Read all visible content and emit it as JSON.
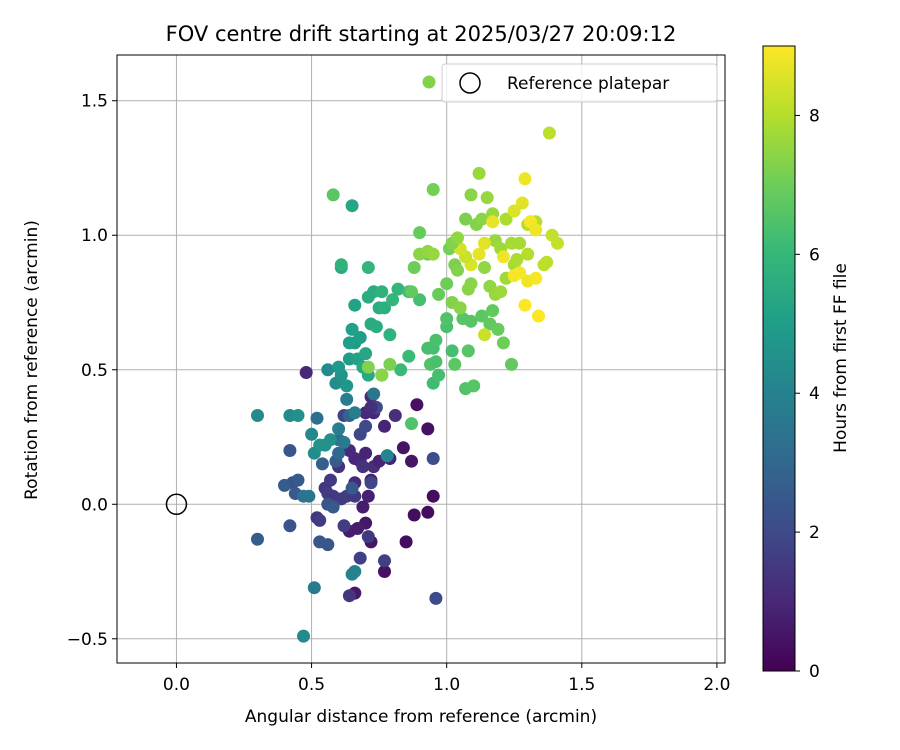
{
  "chart_data": {
    "type": "scatter",
    "title": "FOV centre drift starting at 2025/03/27 20:09:12",
    "xlabel": "Angular distance from reference (arcmin)",
    "ylabel": "Rotation from reference (arcmin)",
    "xlim": [
      -0.22,
      2.03
    ],
    "ylim": [
      -0.59,
      1.67
    ],
    "xticks": [
      0.0,
      0.5,
      1.0,
      1.5,
      2.0
    ],
    "xtick_labels": [
      "0.0",
      "0.5",
      "1.0",
      "1.5",
      "2.0"
    ],
    "yticks": [
      -0.5,
      0.0,
      0.5,
      1.0,
      1.5
    ],
    "ytick_labels": [
      "−0.5",
      "0.0",
      "0.5",
      "1.0",
      "1.5"
    ],
    "grid": true,
    "legend_position": "top-right",
    "colormap": "viridis",
    "colorbar": {
      "label": "Hours from first FF file",
      "range": [
        0,
        9
      ],
      "ticks": [
        0,
        2,
        4,
        6,
        8
      ],
      "tick_labels": [
        "0",
        "2",
        "4",
        "6",
        "8"
      ]
    },
    "reference": {
      "name": "Reference platepar",
      "x": 0.0,
      "y": 0.0
    },
    "points": [
      [
        0.48,
        0.49,
        1.0
      ],
      [
        0.7,
        0.34,
        1.0
      ],
      [
        0.72,
        0.4,
        1.1
      ],
      [
        0.73,
        0.34,
        1.0
      ],
      [
        0.77,
        0.29,
        0.9
      ],
      [
        0.78,
        0.18,
        0.8
      ],
      [
        0.84,
        0.21,
        0.5
      ],
      [
        0.87,
        0.16,
        0.5
      ],
      [
        0.89,
        0.37,
        0.4
      ],
      [
        0.93,
        0.28,
        0.4
      ],
      [
        0.95,
        0.03,
        0.3
      ],
      [
        0.88,
        -0.04,
        0.3
      ],
      [
        0.93,
        -0.03,
        0.3
      ],
      [
        0.85,
        -0.14,
        0.3
      ],
      [
        0.77,
        -0.25,
        0.4
      ],
      [
        0.72,
        -0.14,
        0.5
      ],
      [
        0.7,
        -0.07,
        0.6
      ],
      [
        0.67,
        -0.09,
        0.7
      ],
      [
        0.64,
        -0.1,
        0.7
      ],
      [
        0.66,
        -0.33,
        0.6
      ],
      [
        0.69,
        -0.01,
        0.7
      ],
      [
        0.72,
        0.09,
        0.8
      ],
      [
        0.71,
        0.03,
        0.8
      ],
      [
        0.66,
        0.17,
        1.0
      ],
      [
        0.64,
        0.2,
        1.1
      ],
      [
        0.66,
        0.08,
        1.0
      ],
      [
        0.68,
        0.16,
        1.0
      ],
      [
        0.7,
        0.19,
        0.9
      ],
      [
        0.73,
        0.14,
        1.2
      ],
      [
        0.79,
        0.17,
        0.9
      ],
      [
        0.75,
        0.16,
        0.9
      ],
      [
        0.81,
        0.33,
        1.2
      ],
      [
        0.69,
        0.14,
        1.3
      ],
      [
        0.6,
        0.14,
        1.3
      ],
      [
        0.55,
        0.06,
        1.4
      ],
      [
        0.57,
        0.09,
        1.5
      ],
      [
        0.52,
        -0.05,
        1.4
      ],
      [
        0.53,
        -0.06,
        1.6
      ],
      [
        0.56,
        0.04,
        1.6
      ],
      [
        0.58,
        0.03,
        1.5
      ],
      [
        0.61,
        0.02,
        1.6
      ],
      [
        0.63,
        0.03,
        1.6
      ],
      [
        0.66,
        0.03,
        1.5
      ],
      [
        0.62,
        -0.08,
        1.6
      ],
      [
        0.64,
        -0.34,
        1.4
      ],
      [
        0.68,
        -0.2,
        1.7
      ],
      [
        0.71,
        -0.12,
        1.5
      ],
      [
        0.77,
        -0.21,
        1.7
      ],
      [
        0.72,
        0.08,
        1.9
      ],
      [
        0.68,
        0.26,
        1.9
      ],
      [
        0.62,
        0.33,
        1.8
      ],
      [
        0.7,
        0.29,
        2.0
      ],
      [
        0.74,
        0.36,
        2.0
      ],
      [
        0.72,
        0.36,
        1.2
      ],
      [
        0.95,
        0.17,
        2.1
      ],
      [
        0.96,
        -0.35,
        2.0
      ],
      [
        0.42,
        0.2,
        2.4
      ],
      [
        0.43,
        0.08,
        2.2
      ],
      [
        0.42,
        -0.08,
        2.3
      ],
      [
        0.44,
        0.04,
        2.5
      ],
      [
        0.4,
        0.07,
        2.6
      ],
      [
        0.45,
        0.09,
        2.5
      ],
      [
        0.3,
        -0.13,
        2.6
      ],
      [
        0.53,
        -0.14,
        2.4
      ],
      [
        0.56,
        -0.15,
        2.4
      ],
      [
        0.54,
        0.15,
        2.7
      ],
      [
        0.59,
        0.16,
        2.6
      ],
      [
        0.65,
        0.06,
        2.5
      ],
      [
        0.56,
        0.0,
        2.4
      ],
      [
        0.58,
        -0.01,
        2.5
      ],
      [
        0.6,
        0.19,
        3.0
      ],
      [
        0.6,
        0.24,
        3.0
      ],
      [
        0.64,
        0.33,
        2.9
      ],
      [
        0.52,
        0.32,
        3.3
      ],
      [
        0.47,
        0.03,
        3.4
      ],
      [
        0.49,
        0.03,
        3.5
      ],
      [
        0.51,
        -0.31,
        3.7
      ],
      [
        0.6,
        0.28,
        3.8
      ],
      [
        0.65,
        -0.26,
        4.0
      ],
      [
        0.66,
        -0.25,
        4.0
      ],
      [
        0.62,
        0.23,
        3.7
      ],
      [
        0.66,
        0.34,
        3.8
      ],
      [
        0.63,
        0.39,
        3.9
      ],
      [
        0.73,
        0.41,
        3.5
      ],
      [
        0.78,
        0.18,
        4.1
      ],
      [
        0.47,
        -0.49,
        4.3
      ],
      [
        0.3,
        0.33,
        4.3
      ],
      [
        0.42,
        0.33,
        4.3
      ],
      [
        0.45,
        0.33,
        4.5
      ],
      [
        0.5,
        0.26,
        4.2
      ],
      [
        0.51,
        0.19,
        4.4
      ],
      [
        0.53,
        0.22,
        4.6
      ],
      [
        0.55,
        0.22,
        4.6
      ],
      [
        0.57,
        0.24,
        4.5
      ],
      [
        0.56,
        0.5,
        4.3
      ],
      [
        0.59,
        0.45,
        4.4
      ],
      [
        0.61,
        0.48,
        4.6
      ],
      [
        0.63,
        0.44,
        4.7
      ],
      [
        0.6,
        0.51,
        4.8
      ],
      [
        0.64,
        0.54,
        4.9
      ],
      [
        0.66,
        0.6,
        4.9
      ],
      [
        0.68,
        0.62,
        5.0
      ],
      [
        0.64,
        0.6,
        5.0
      ],
      [
        0.65,
        0.65,
        5.1
      ],
      [
        0.66,
        0.74,
        5.2
      ],
      [
        0.67,
        0.54,
        5.2
      ],
      [
        0.7,
        0.56,
        5.3
      ],
      [
        0.71,
        0.48,
        5.4
      ],
      [
        0.69,
        0.51,
        5.4
      ],
      [
        0.72,
        0.67,
        5.5
      ],
      [
        0.74,
        0.66,
        5.6
      ],
      [
        0.75,
        0.73,
        5.5
      ],
      [
        0.71,
        0.77,
        5.6
      ],
      [
        0.73,
        0.79,
        5.6
      ],
      [
        0.77,
        0.73,
        5.7
      ],
      [
        0.76,
        0.79,
        5.8
      ],
      [
        0.79,
        0.63,
        5.8
      ],
      [
        0.8,
        0.76,
        5.9
      ],
      [
        0.82,
        0.8,
        5.9
      ],
      [
        0.76,
        0.48,
        5.9
      ],
      [
        0.61,
        0.88,
        5.4
      ],
      [
        0.65,
        1.11,
        5.3
      ],
      [
        0.61,
        0.89,
        5.8
      ],
      [
        0.71,
        0.88,
        5.9
      ],
      [
        0.83,
        0.5,
        6.1
      ],
      [
        0.86,
        0.55,
        6.1
      ],
      [
        0.86,
        0.79,
        6.2
      ],
      [
        0.9,
        0.76,
        6.3
      ],
      [
        0.93,
        0.58,
        6.3
      ],
      [
        0.95,
        0.45,
        6.2
      ],
      [
        0.95,
        0.58,
        6.3
      ],
      [
        0.96,
        0.61,
        6.4
      ],
      [
        0.97,
        0.48,
        6.3
      ],
      [
        1.0,
        0.66,
        6.4
      ],
      [
        1.02,
        0.57,
        6.3
      ],
      [
        0.87,
        0.3,
        6.5
      ],
      [
        0.94,
        0.52,
        6.5
      ],
      [
        0.96,
        0.53,
        6.4
      ],
      [
        1.0,
        0.69,
        6.5
      ],
      [
        1.03,
        0.52,
        6.7
      ],
      [
        1.06,
        0.69,
        6.6
      ],
      [
        1.09,
        0.68,
        6.6
      ],
      [
        1.13,
        0.7,
        6.7
      ],
      [
        1.16,
        0.67,
        6.8
      ],
      [
        1.17,
        0.72,
        6.8
      ],
      [
        1.19,
        0.65,
        6.9
      ],
      [
        1.21,
        0.6,
        7.0
      ],
      [
        1.24,
        0.52,
        6.8
      ],
      [
        1.07,
        0.43,
        6.5
      ],
      [
        1.08,
        0.57,
        6.6
      ],
      [
        1.1,
        0.44,
        6.6
      ],
      [
        0.87,
        0.79,
        6.8
      ],
      [
        0.88,
        0.88,
        7.0
      ],
      [
        0.9,
        1.01,
        6.9
      ],
      [
        0.93,
        0.93,
        7.0
      ],
      [
        0.95,
        1.17,
        7.1
      ],
      [
        0.97,
        0.78,
        6.9
      ],
      [
        1.0,
        0.82,
        7.0
      ],
      [
        1.01,
        0.95,
        7.1
      ],
      [
        1.03,
        0.89,
        7.2
      ],
      [
        1.04,
        0.87,
        7.3
      ],
      [
        1.02,
        0.75,
        7.3
      ],
      [
        1.05,
        0.73,
        7.4
      ],
      [
        1.08,
        0.8,
        7.4
      ],
      [
        1.09,
        0.82,
        7.4
      ],
      [
        1.14,
        0.88,
        7.5
      ],
      [
        1.16,
        0.81,
        7.5
      ],
      [
        1.18,
        0.78,
        7.6
      ],
      [
        1.2,
        0.79,
        7.7
      ],
      [
        1.22,
        0.84,
        7.7
      ],
      [
        1.25,
        0.89,
        7.8
      ],
      [
        1.07,
        1.06,
        7.2
      ],
      [
        1.11,
        1.04,
        7.3
      ],
      [
        1.13,
        1.06,
        7.4
      ],
      [
        1.09,
        1.15,
        7.4
      ],
      [
        1.12,
        1.23,
        7.6
      ],
      [
        1.15,
        1.14,
        7.6
      ],
      [
        1.17,
        1.08,
        7.6
      ],
      [
        1.18,
        0.98,
        7.6
      ],
      [
        1.2,
        0.95,
        7.7
      ],
      [
        1.22,
        1.06,
        7.9
      ],
      [
        1.24,
        0.97,
        7.8
      ],
      [
        1.26,
        0.91,
        7.9
      ],
      [
        1.27,
        0.97,
        7.8
      ],
      [
        1.3,
        0.93,
        8.0
      ],
      [
        1.3,
        1.04,
        8.0
      ],
      [
        1.33,
        1.05,
        8.0
      ],
      [
        1.36,
        0.89,
        8.1
      ],
      [
        1.37,
        0.9,
        8.1
      ],
      [
        1.39,
        1.0,
        8.2
      ],
      [
        1.41,
        0.97,
        8.2
      ],
      [
        1.38,
        1.38,
        8.1
      ],
      [
        1.25,
        1.09,
        8.5
      ],
      [
        1.28,
        1.12,
        8.6
      ],
      [
        1.29,
        1.21,
        8.8
      ],
      [
        1.31,
        1.05,
        8.9
      ],
      [
        1.33,
        1.02,
        8.8
      ],
      [
        1.3,
        0.83,
        8.8
      ],
      [
        1.33,
        0.84,
        8.9
      ],
      [
        1.34,
        0.7,
        9.0
      ],
      [
        1.29,
        0.74,
        9.0
      ],
      [
        1.27,
        0.86,
        8.9
      ],
      [
        1.25,
        0.85,
        8.9
      ],
      [
        1.21,
        0.92,
        8.8
      ],
      [
        1.17,
        1.05,
        8.7
      ],
      [
        1.14,
        0.97,
        8.6
      ],
      [
        1.12,
        0.93,
        8.7
      ],
      [
        1.09,
        0.89,
        8.5
      ],
      [
        1.07,
        0.92,
        8.3
      ],
      [
        1.05,
        0.95,
        8.4
      ],
      [
        1.14,
        0.63,
        8.3
      ],
      [
        0.9,
        0.93,
        7.4
      ],
      [
        0.93,
        0.94,
        7.5
      ],
      [
        0.95,
        0.93,
        7.6
      ],
      [
        1.02,
        0.97,
        7.3
      ],
      [
        1.04,
        0.99,
        7.5
      ],
      [
        0.58,
        1.15,
        6.7
      ],
      [
        0.79,
        0.52,
        7.2
      ],
      [
        0.76,
        0.48,
        7.4
      ],
      [
        0.71,
        0.51,
        7.3
      ]
    ]
  }
}
